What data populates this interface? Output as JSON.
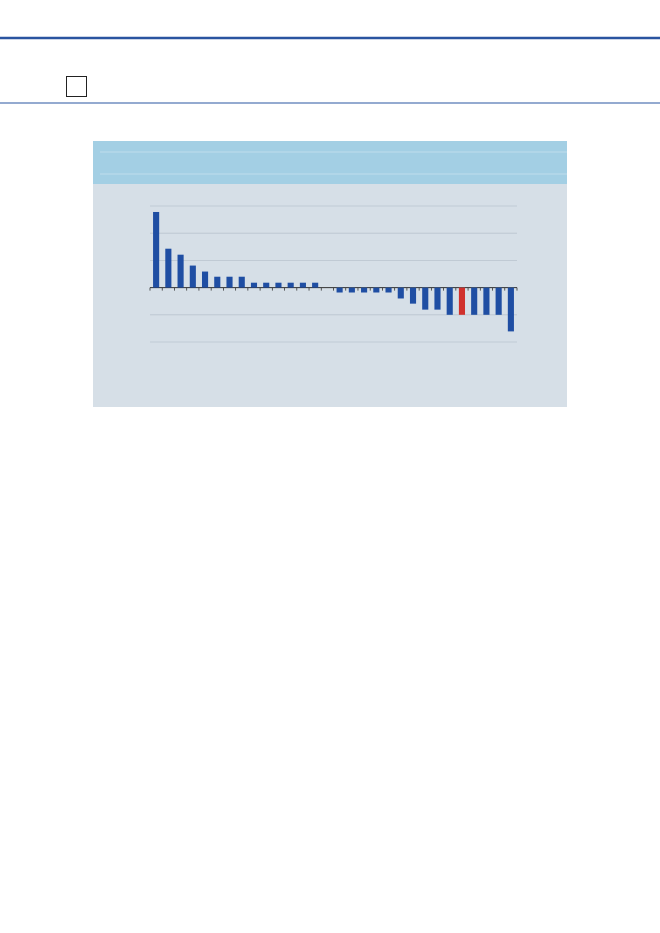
{
  "chart_data": {
    "type": "bar",
    "categories": [
      null,
      null,
      null,
      null,
      null,
      null,
      null,
      null,
      null,
      null,
      null,
      null,
      null,
      null,
      null,
      null,
      null,
      null,
      null,
      null,
      null,
      null,
      null,
      null,
      null,
      null,
      null,
      null,
      null,
      null
    ],
    "values": [
      2.78,
      1.43,
      1.21,
      0.81,
      0.59,
      0.4,
      0.4,
      0.4,
      0.18,
      0.18,
      0.18,
      0.18,
      0.18,
      0.18,
      null,
      -0.18,
      -0.18,
      -0.18,
      -0.18,
      -0.18,
      -0.4,
      -0.59,
      -0.81,
      -0.81,
      -1.0,
      -1.0,
      -1.0,
      -1.0,
      -1.0,
      -1.61
    ],
    "colors": [
      "#1f4ea3",
      "#1f4ea3",
      "#1f4ea3",
      "#1f4ea3",
      "#1f4ea3",
      "#1f4ea3",
      "#1f4ea3",
      "#1f4ea3",
      "#1f4ea3",
      "#1f4ea3",
      "#1f4ea3",
      "#1f4ea3",
      "#1f4ea3",
      "#1f4ea3",
      "#1f4ea3",
      "#1f4ea3",
      "#1f4ea3",
      "#1f4ea3",
      "#1f4ea3",
      "#1f4ea3",
      "#1f4ea3",
      "#1f4ea3",
      "#1f4ea3",
      "#1f4ea3",
      "#1f4ea3",
      "#d0312d",
      "#1f4ea3",
      "#1f4ea3",
      "#1f4ea3",
      "#1f4ea3"
    ],
    "ylim": [
      -2,
      3
    ],
    "yticks": [
      -2,
      -1,
      0,
      1,
      2,
      3
    ],
    "grid": true
  }
}
